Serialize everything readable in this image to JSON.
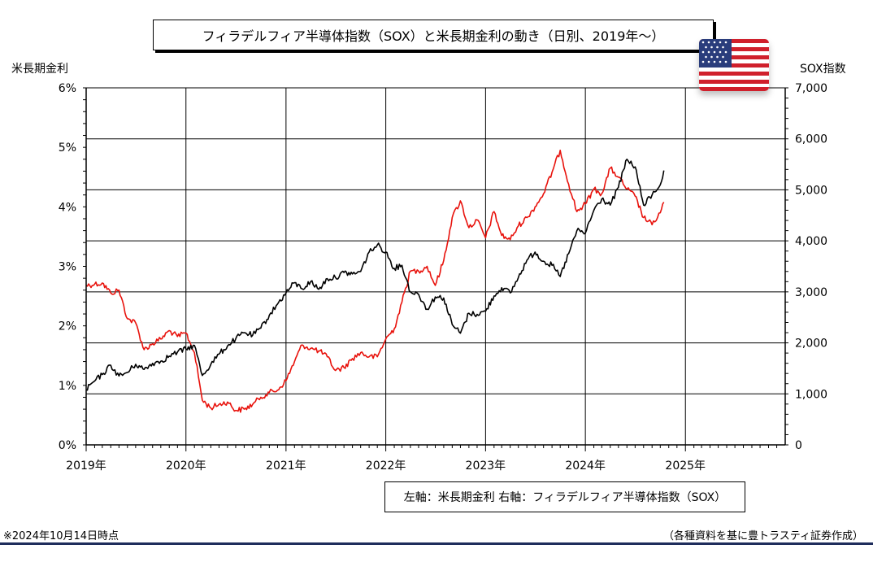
{
  "title": "フィラデルフィア半導体指数（SOX）と米長期金利の動き（日別、2019年～）",
  "left_axis_title": "米長期金利",
  "right_axis_title": "SOX指数",
  "legend": "左軸：米長期金利 右軸：フィラデルフィア半導体指数（SOX）",
  "note_left": "※2024年10月14日時点",
  "note_right": "（各種資料を基に豊トラスティ証券作成）",
  "colors": {
    "yield_line": "#e8120c",
    "sox_line": "#000000",
    "grid": "#000000",
    "bottom_rule": "#1f2d5c"
  },
  "icons": {
    "flag": "us-flag-icon"
  },
  "chart_data": {
    "type": "line",
    "x_range": [
      "2019-01-01",
      "2026-01-01"
    ],
    "x_tick_labels": [
      "2019年",
      "2020年",
      "2021年",
      "2022年",
      "2023年",
      "2024年",
      "2025年"
    ],
    "y_left": {
      "label": "米長期金利",
      "unit": "%",
      "ylim": [
        0,
        6
      ],
      "ticks": [
        "0%",
        "1%",
        "2%",
        "3%",
        "4%",
        "5%",
        "6%"
      ]
    },
    "y_right": {
      "label": "SOX指数",
      "ylim": [
        0,
        7000
      ],
      "ticks": [
        "0",
        "1,000",
        "2,000",
        "3,000",
        "4,000",
        "5,000",
        "6,000",
        "7,000"
      ]
    },
    "grid": true,
    "series": [
      {
        "name": "米長期金利",
        "axis": "left",
        "points": [
          [
            "2019-01-01",
            2.68
          ],
          [
            "2019-02-01",
            2.7
          ],
          [
            "2019-03-01",
            2.72
          ],
          [
            "2019-04-01",
            2.55
          ],
          [
            "2019-05-01",
            2.6
          ],
          [
            "2019-06-01",
            2.12
          ],
          [
            "2019-07-01",
            2.05
          ],
          [
            "2019-08-01",
            1.6
          ],
          [
            "2019-09-01",
            1.7
          ],
          [
            "2019-10-01",
            1.78
          ],
          [
            "2019-11-01",
            1.92
          ],
          [
            "2019-12-01",
            1.82
          ],
          [
            "2020-01-01",
            1.88
          ],
          [
            "2020-02-01",
            1.55
          ],
          [
            "2020-03-01",
            0.75
          ],
          [
            "2020-04-01",
            0.62
          ],
          [
            "2020-05-01",
            0.68
          ],
          [
            "2020-06-01",
            0.72
          ],
          [
            "2020-07-01",
            0.58
          ],
          [
            "2020-08-01",
            0.6
          ],
          [
            "2020-09-01",
            0.68
          ],
          [
            "2020-10-01",
            0.8
          ],
          [
            "2020-11-01",
            0.88
          ],
          [
            "2020-12-01",
            0.92
          ],
          [
            "2021-01-01",
            1.08
          ],
          [
            "2021-02-01",
            1.4
          ],
          [
            "2021-03-01",
            1.68
          ],
          [
            "2021-04-01",
            1.62
          ],
          [
            "2021-05-01",
            1.58
          ],
          [
            "2021-06-01",
            1.48
          ],
          [
            "2021-07-01",
            1.25
          ],
          [
            "2021-08-01",
            1.3
          ],
          [
            "2021-09-01",
            1.45
          ],
          [
            "2021-10-01",
            1.55
          ],
          [
            "2021-11-01",
            1.48
          ],
          [
            "2021-12-01",
            1.48
          ],
          [
            "2022-01-01",
            1.78
          ],
          [
            "2022-02-01",
            1.95
          ],
          [
            "2022-03-01",
            2.4
          ],
          [
            "2022-04-01",
            2.92
          ],
          [
            "2022-05-01",
            2.92
          ],
          [
            "2022-06-01",
            3.0
          ],
          [
            "2022-07-01",
            2.68
          ],
          [
            "2022-08-01",
            3.1
          ],
          [
            "2022-09-01",
            3.82
          ],
          [
            "2022-10-01",
            4.1
          ],
          [
            "2022-11-01",
            3.65
          ],
          [
            "2022-12-01",
            3.78
          ],
          [
            "2023-01-01",
            3.48
          ],
          [
            "2023-02-01",
            3.92
          ],
          [
            "2023-03-01",
            3.52
          ],
          [
            "2023-04-01",
            3.45
          ],
          [
            "2023-05-01",
            3.68
          ],
          [
            "2023-06-01",
            3.82
          ],
          [
            "2023-07-01",
            4.0
          ],
          [
            "2023-08-01",
            4.22
          ],
          [
            "2023-09-01",
            4.58
          ],
          [
            "2023-10-01",
            4.95
          ],
          [
            "2023-11-01",
            4.38
          ],
          [
            "2023-12-01",
            3.92
          ],
          [
            "2024-01-01",
            4.05
          ],
          [
            "2024-02-01",
            4.3
          ],
          [
            "2024-03-01",
            4.22
          ],
          [
            "2024-04-01",
            4.65
          ],
          [
            "2024-05-01",
            4.5
          ],
          [
            "2024-06-01",
            4.3
          ],
          [
            "2024-07-01",
            4.18
          ],
          [
            "2024-08-01",
            3.82
          ],
          [
            "2024-09-01",
            3.7
          ],
          [
            "2024-10-01",
            3.9
          ],
          [
            "2024-10-14",
            4.08
          ]
        ]
      },
      {
        "name": "フィラデルフィア半導体指数（SOX）",
        "axis": "right",
        "points": [
          [
            "2019-01-01",
            1080
          ],
          [
            "2019-02-01",
            1250
          ],
          [
            "2019-03-01",
            1380
          ],
          [
            "2019-04-01",
            1560
          ],
          [
            "2019-05-01",
            1350
          ],
          [
            "2019-06-01",
            1420
          ],
          [
            "2019-07-01",
            1580
          ],
          [
            "2019-08-01",
            1480
          ],
          [
            "2019-09-01",
            1600
          ],
          [
            "2019-10-01",
            1640
          ],
          [
            "2019-11-01",
            1740
          ],
          [
            "2019-12-01",
            1820
          ],
          [
            "2020-01-01",
            1880
          ],
          [
            "2020-02-01",
            1950
          ],
          [
            "2020-03-01",
            1360
          ],
          [
            "2020-04-01",
            1580
          ],
          [
            "2020-05-01",
            1780
          ],
          [
            "2020-06-01",
            1940
          ],
          [
            "2020-07-01",
            2080
          ],
          [
            "2020-08-01",
            2200
          ],
          [
            "2020-09-01",
            2150
          ],
          [
            "2020-10-01",
            2290
          ],
          [
            "2020-11-01",
            2540
          ],
          [
            "2020-12-01",
            2760
          ],
          [
            "2021-01-01",
            2980
          ],
          [
            "2021-02-01",
            3180
          ],
          [
            "2021-03-01",
            3060
          ],
          [
            "2021-04-01",
            3200
          ],
          [
            "2021-05-01",
            3050
          ],
          [
            "2021-06-01",
            3260
          ],
          [
            "2021-07-01",
            3280
          ],
          [
            "2021-08-01",
            3380
          ],
          [
            "2021-09-01",
            3350
          ],
          [
            "2021-10-01",
            3400
          ],
          [
            "2021-11-01",
            3780
          ],
          [
            "2021-12-01",
            3920
          ],
          [
            "2022-01-01",
            3780
          ],
          [
            "2022-02-01",
            3460
          ],
          [
            "2022-03-01",
            3520
          ],
          [
            "2022-04-01",
            3000
          ],
          [
            "2022-05-01",
            2950
          ],
          [
            "2022-06-01",
            2660
          ],
          [
            "2022-07-01",
            2900
          ],
          [
            "2022-08-01",
            2880
          ],
          [
            "2022-09-01",
            2360
          ],
          [
            "2022-10-01",
            2190
          ],
          [
            "2022-11-01",
            2580
          ],
          [
            "2022-12-01",
            2560
          ],
          [
            "2023-01-01",
            2620
          ],
          [
            "2023-02-01",
            2920
          ],
          [
            "2023-03-01",
            3080
          ],
          [
            "2023-04-01",
            2980
          ],
          [
            "2023-05-01",
            3280
          ],
          [
            "2023-06-01",
            3620
          ],
          [
            "2023-07-01",
            3780
          ],
          [
            "2023-08-01",
            3600
          ],
          [
            "2023-09-01",
            3520
          ],
          [
            "2023-10-01",
            3300
          ],
          [
            "2023-11-01",
            3750
          ],
          [
            "2023-12-01",
            4200
          ],
          [
            "2024-01-01",
            4150
          ],
          [
            "2024-02-01",
            4600
          ],
          [
            "2024-03-01",
            4820
          ],
          [
            "2024-04-01",
            4700
          ],
          [
            "2024-05-01",
            5050
          ],
          [
            "2024-06-01",
            5600
          ],
          [
            "2024-07-01",
            5450
          ],
          [
            "2024-08-01",
            4700
          ],
          [
            "2024-09-01",
            4900
          ],
          [
            "2024-10-01",
            5100
          ],
          [
            "2024-10-14",
            5380
          ]
        ]
      }
    ]
  }
}
